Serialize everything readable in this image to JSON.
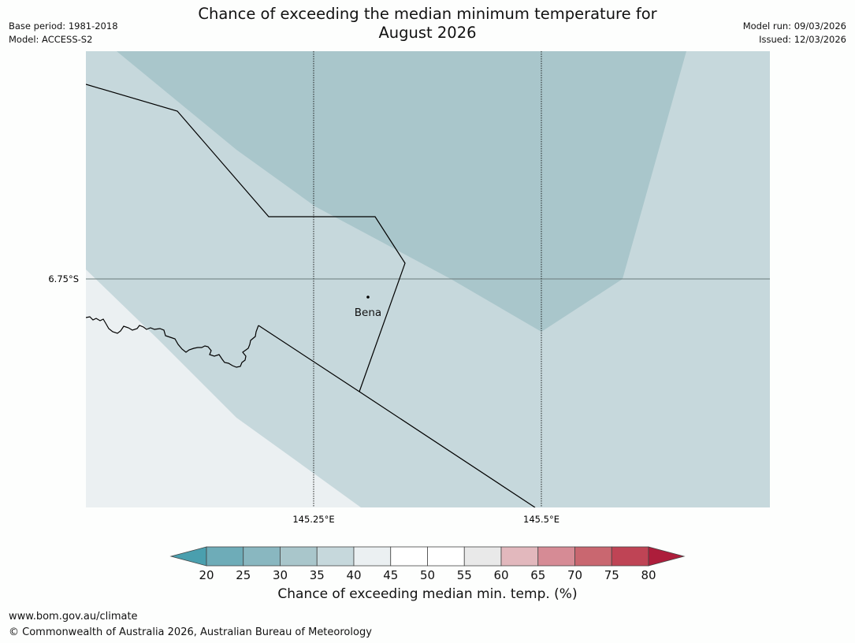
{
  "header": {
    "title_line1": "Chance of exceeding the median minimum temperature for",
    "title_line2": "August 2026",
    "base_period": "Base period: 1981-2018",
    "model": "Model: ACCESS-S2",
    "model_run": "Model run: 09/03/2026",
    "issued": "Issued: 12/03/2026"
  },
  "map": {
    "latitude_label": "6.75°S",
    "longitude_labels": [
      "145.25°E",
      "145.5°E"
    ],
    "town": "Bena",
    "colors": {
      "band_30_35": "#a9c6cb",
      "band_35_40": "#c6d8dc",
      "band_40_45": "#ebf0f2",
      "boundary": "#000000",
      "gridline": "#6b7b7b"
    }
  },
  "colorbar": {
    "ticks": [
      "20",
      "25",
      "30",
      "35",
      "40",
      "45",
      "50",
      "55",
      "60",
      "65",
      "70",
      "75",
      "80"
    ],
    "colors": [
      "#6eacb8",
      "#89b7c0",
      "#a9c6cb",
      "#c6d8dc",
      "#ebf0f2",
      "#ffffff",
      "#ffffff",
      "#e9e9e9",
      "#e2b8bd",
      "#d68b95",
      "#c96770",
      "#bf4455"
    ],
    "under_color": "#4a9fae",
    "over_color": "#ad1d3b",
    "label": "Chance of exceeding median min. temp. (%)"
  },
  "footer": {
    "url": "www.bom.gov.au/climate",
    "copyright": "© Commonwealth of Australia 2026, Australian Bureau of Meteorology"
  }
}
